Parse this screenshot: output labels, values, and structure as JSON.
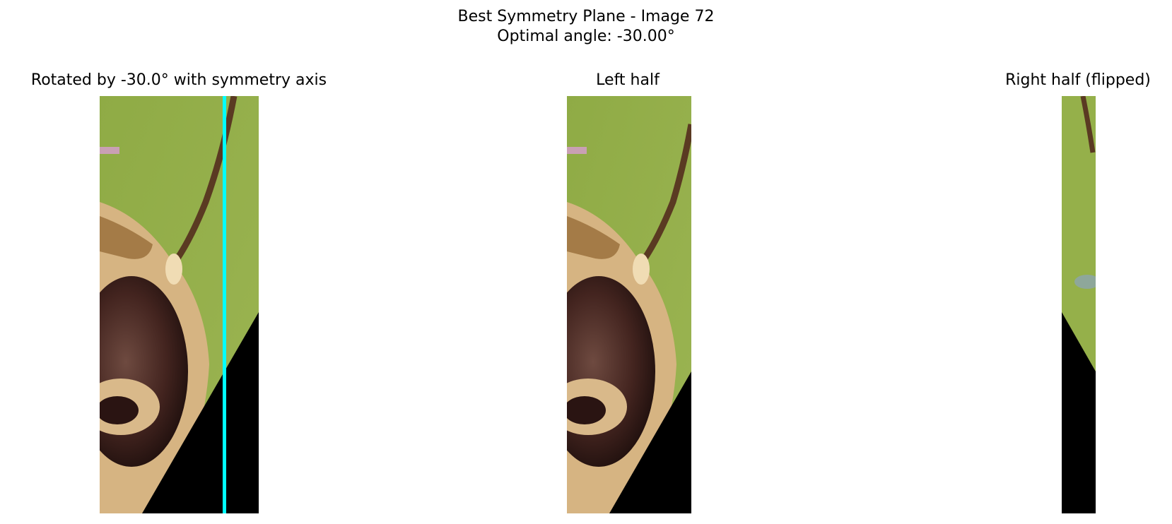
{
  "figure": {
    "title_line1": "Best Symmetry Plane - Image 72",
    "title_line2": "Optimal angle: -30.00°"
  },
  "panels": {
    "rotated": {
      "title": "Rotated by -30.0° with symmetry axis"
    },
    "left": {
      "title": "Left half"
    },
    "right": {
      "title": "Right half (flipped)"
    }
  },
  "colors": {
    "background_green": "#95b04a",
    "axis_line": "#00ffff",
    "mask": "#000000",
    "eye_dark": "#3b1f1c",
    "fur": "#d9b98a",
    "antenna": "#5a3a22"
  }
}
